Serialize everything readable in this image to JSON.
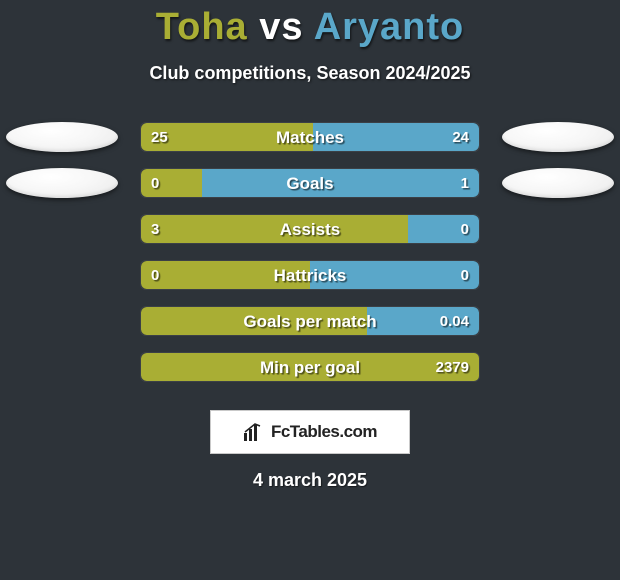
{
  "title_parts": {
    "p1": "Toha",
    "vs": "vs",
    "p2": "Aryanto"
  },
  "title_color_p1": "#a9ae34",
  "title_color_vs": "#ffffff",
  "title_color_p2": "#5aa7c9",
  "subtitle": "Club competitions, Season 2024/2025",
  "bar_color_left": "#a9ae34",
  "bar_color_right": "#5aa7c9",
  "container_width": 340,
  "ellipse_rows": [
    0,
    1
  ],
  "rows": [
    {
      "label": "Matches",
      "left_val": "25",
      "right_val": "24",
      "left_pct": 51,
      "right_pct": 49
    },
    {
      "label": "Goals",
      "left_val": "0",
      "right_val": "1",
      "left_pct": 18,
      "right_pct": 82
    },
    {
      "label": "Assists",
      "left_val": "3",
      "right_val": "0",
      "left_pct": 79,
      "right_pct": 21
    },
    {
      "label": "Hattricks",
      "left_val": "0",
      "right_val": "0",
      "left_pct": 50,
      "right_pct": 50
    },
    {
      "label": "Goals per match",
      "left_val": "",
      "right_val": "0.04",
      "left_pct": 67,
      "right_pct": 33
    },
    {
      "label": "Min per goal",
      "left_val": "",
      "right_val": "2379",
      "left_pct": 100,
      "right_pct": 0
    }
  ],
  "brand_text": "FcTables.com",
  "footer_date": "4 march 2025",
  "text_color": "#ffffff",
  "bg_color": "#2d3339"
}
